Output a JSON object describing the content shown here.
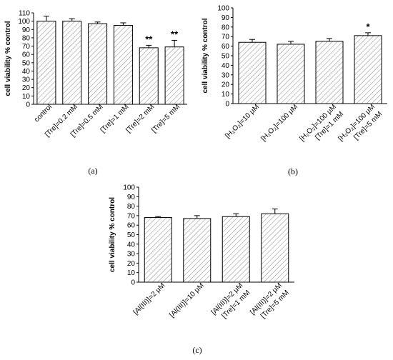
{
  "chart_data": [
    {
      "type": "bar",
      "panel_label": "(a)",
      "ylabel": "cell viability % control",
      "ylim": [
        0,
        110
      ],
      "yticks": [
        0,
        10,
        20,
        30,
        40,
        50,
        60,
        70,
        80,
        90,
        100,
        110
      ],
      "categories": [
        [
          "control"
        ],
        [
          "[Tre]=0.2 mM"
        ],
        [
          "[Tre]=0.5 mM"
        ],
        [
          "[Tre]=1 mM"
        ],
        [
          "[Tre]=2 mM"
        ],
        [
          "[Tre]=5 mM"
        ]
      ],
      "values": [
        100,
        100,
        97,
        95,
        68,
        69
      ],
      "errors": [
        6,
        3,
        2,
        3,
        3,
        8
      ],
      "annotations": [
        "",
        "",
        "",
        "",
        "**",
        "**"
      ],
      "bar_pattern": "diagonal-hatch"
    },
    {
      "type": "bar",
      "panel_label": "(b)",
      "ylabel": "cell viability % control",
      "ylim": [
        0,
        100
      ],
      "yticks": [
        0,
        10,
        20,
        30,
        40,
        50,
        60,
        70,
        80,
        90,
        100
      ],
      "categories": [
        [
          "[H₂O₂]=10 μM"
        ],
        [
          "[H₂O₂]=100 μM"
        ],
        [
          "[H₂O₂]=100 μM",
          "[Tre]=1 mM"
        ],
        [
          "[H₂O₂]=100 μM",
          "[Tre]=5 mM"
        ]
      ],
      "values": [
        64,
        62,
        65,
        71
      ],
      "errors": [
        3,
        3,
        3,
        3
      ],
      "annotations": [
        "",
        "",
        "",
        "*"
      ],
      "bar_pattern": "diagonal-hatch"
    },
    {
      "type": "bar",
      "panel_label": "(c)",
      "ylabel": "cell viability % control",
      "ylim": [
        0,
        100
      ],
      "yticks": [
        0,
        10,
        20,
        30,
        40,
        50,
        60,
        70,
        80,
        90,
        100
      ],
      "categories": [
        [
          "[Al(III)]=2 μM"
        ],
        [
          "[Al(III)]=10 μM"
        ],
        [
          "[Al(III)]=2 μM",
          "[Tre]=1 mM"
        ],
        [
          "[Al(III)]=2 μM",
          "[Tre]=5 mM"
        ]
      ],
      "values": [
        68,
        67,
        69,
        72
      ],
      "errors": [
        1,
        3,
        3,
        5
      ],
      "annotations": [
        "",
        "",
        "",
        ""
      ],
      "bar_pattern": "diagonal-hatch"
    }
  ]
}
